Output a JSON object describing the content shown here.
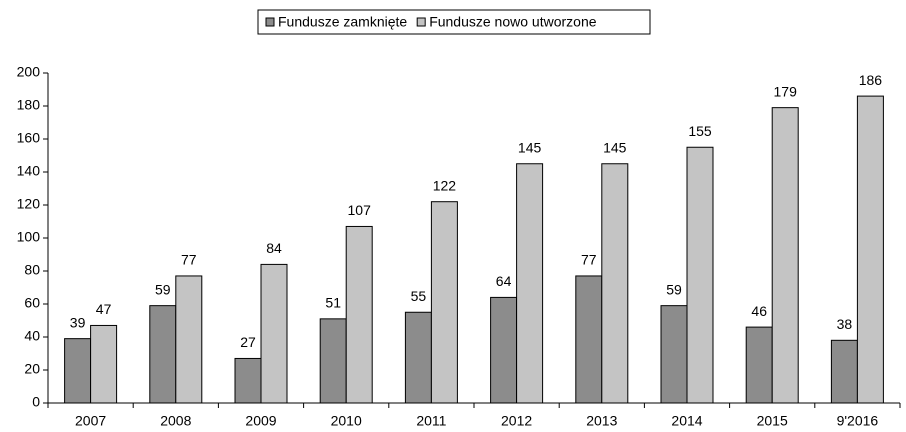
{
  "chart_data": {
    "type": "bar",
    "categories": [
      "2007",
      "2008",
      "2009",
      "2010",
      "2011",
      "2012",
      "2013",
      "2014",
      "2015",
      "9'2016"
    ],
    "series": [
      {
        "name": "Fundusze zamknięte",
        "color": "#8c8c8c",
        "values": [
          39,
          59,
          27,
          51,
          55,
          64,
          77,
          59,
          46,
          38
        ]
      },
      {
        "name": "Fundusze nowo utworzone",
        "color": "#c4c4c4",
        "values": [
          47,
          77,
          84,
          107,
          122,
          145,
          145,
          155,
          179,
          186
        ]
      }
    ],
    "ylim": [
      0,
      200
    ],
    "yticks": [
      0,
      20,
      40,
      60,
      80,
      100,
      120,
      140,
      160,
      180,
      200
    ],
    "grid": false,
    "legend": "top",
    "data_labels": true
  }
}
